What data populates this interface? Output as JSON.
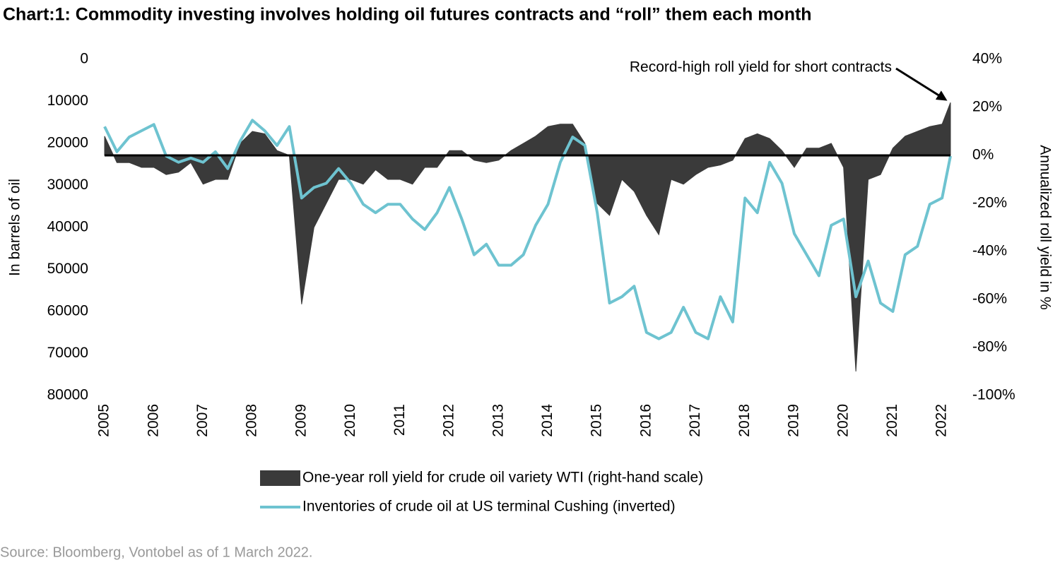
{
  "chart_data": {
    "type": "combo",
    "title": "Chart:1: Commodity investing involves holding oil futures contracts and “roll” them each month",
    "y_label": "In barrels of oil",
    "y2_label": "Annualized roll yield in %",
    "annotation": "Record-high roll yield for short contracts",
    "source": "Source: Bloomberg, Vontobel as of 1 March 2022.",
    "x": [
      2005.0,
      2005.25,
      2005.5,
      2005.75,
      2006.0,
      2006.25,
      2006.5,
      2006.75,
      2007.0,
      2007.25,
      2007.5,
      2007.75,
      2008.0,
      2008.25,
      2008.5,
      2008.75,
      2009.0,
      2009.25,
      2009.5,
      2009.75,
      2010.0,
      2010.25,
      2010.5,
      2010.75,
      2011.0,
      2011.25,
      2011.5,
      2011.75,
      2012.0,
      2012.25,
      2012.5,
      2012.75,
      2013.0,
      2013.25,
      2013.5,
      2013.75,
      2014.0,
      2014.25,
      2014.5,
      2014.75,
      2015.0,
      2015.25,
      2015.5,
      2015.75,
      2016.0,
      2016.25,
      2016.5,
      2016.75,
      2017.0,
      2017.25,
      2017.5,
      2017.75,
      2018.0,
      2018.25,
      2018.5,
      2018.75,
      2019.0,
      2019.25,
      2019.5,
      2019.75,
      2020.0,
      2020.25,
      2020.5,
      2020.75,
      2021.0,
      2021.25,
      2021.5,
      2021.75,
      2022.0,
      2022.17
    ],
    "xlim": [
      2005,
      2022.17
    ],
    "xticks": [
      2005,
      2006,
      2007,
      2008,
      2009,
      2010,
      2011,
      2012,
      2013,
      2014,
      2015,
      2016,
      2017,
      2018,
      2019,
      2020,
      2021,
      2022
    ],
    "ylim": [
      0,
      80000
    ],
    "y_inverted": true,
    "yticks": [
      0,
      10000,
      20000,
      30000,
      40000,
      50000,
      60000,
      70000,
      80000
    ],
    "y2lim": [
      -100,
      40
    ],
    "y2ticks": [
      {
        "value": 40,
        "label": "40%"
      },
      {
        "value": 20,
        "label": "20%"
      },
      {
        "value": 0,
        "label": "0%"
      },
      {
        "value": -20,
        "label": "-20%"
      },
      {
        "value": -40,
        "label": "-40%"
      },
      {
        "value": -60,
        "label": "-60%"
      },
      {
        "value": -80,
        "label": "-80%"
      },
      {
        "value": -100,
        "label": "-100%"
      }
    ],
    "series": [
      {
        "name": "One-year roll yield for crude oil variety WTI (right-hand scale)",
        "kind": "area",
        "axis": "y2",
        "color": "#3a3a3a",
        "values": [
          8,
          -3,
          -3,
          -5,
          -5,
          -8,
          -7,
          -3,
          -12,
          -10,
          -10,
          5,
          10,
          9,
          2,
          0,
          -62,
          -30,
          -20,
          -10,
          -10,
          -12,
          -6,
          -10,
          -10,
          -12,
          -5,
          -5,
          2,
          2,
          -2,
          -3,
          -2,
          2,
          5,
          8,
          12,
          13,
          13,
          5,
          -20,
          -25,
          -10,
          -15,
          -25,
          -33,
          -10,
          -12,
          -8,
          -5,
          -4,
          -2,
          7,
          9,
          7,
          2,
          -5,
          3,
          3,
          5,
          -5,
          -90,
          -10,
          -8,
          3,
          8,
          10,
          12,
          13,
          22
        ]
      },
      {
        "name": "Inventories of crude oil at US terminal Cushing (inverted)",
        "kind": "line",
        "axis": "y",
        "color": "#6ec3d0",
        "values": [
          16000,
          22000,
          18500,
          17000,
          15500,
          23000,
          24500,
          23500,
          24500,
          22000,
          26000,
          19500,
          14500,
          17000,
          20500,
          16000,
          33000,
          30500,
          29500,
          26000,
          29500,
          34500,
          36500,
          34500,
          34500,
          38000,
          40500,
          36500,
          30500,
          38000,
          46500,
          44000,
          49000,
          49000,
          46500,
          39500,
          34500,
          24500,
          18500,
          20500,
          36500,
          58000,
          56500,
          54000,
          65000,
          66500,
          65000,
          59000,
          65000,
          66500,
          56500,
          62500,
          33000,
          36500,
          24500,
          29500,
          41500,
          46500,
          51500,
          39500,
          38000,
          56500,
          48000,
          58000,
          60000,
          46500,
          44500,
          34500,
          33000,
          23000
        ]
      }
    ]
  }
}
